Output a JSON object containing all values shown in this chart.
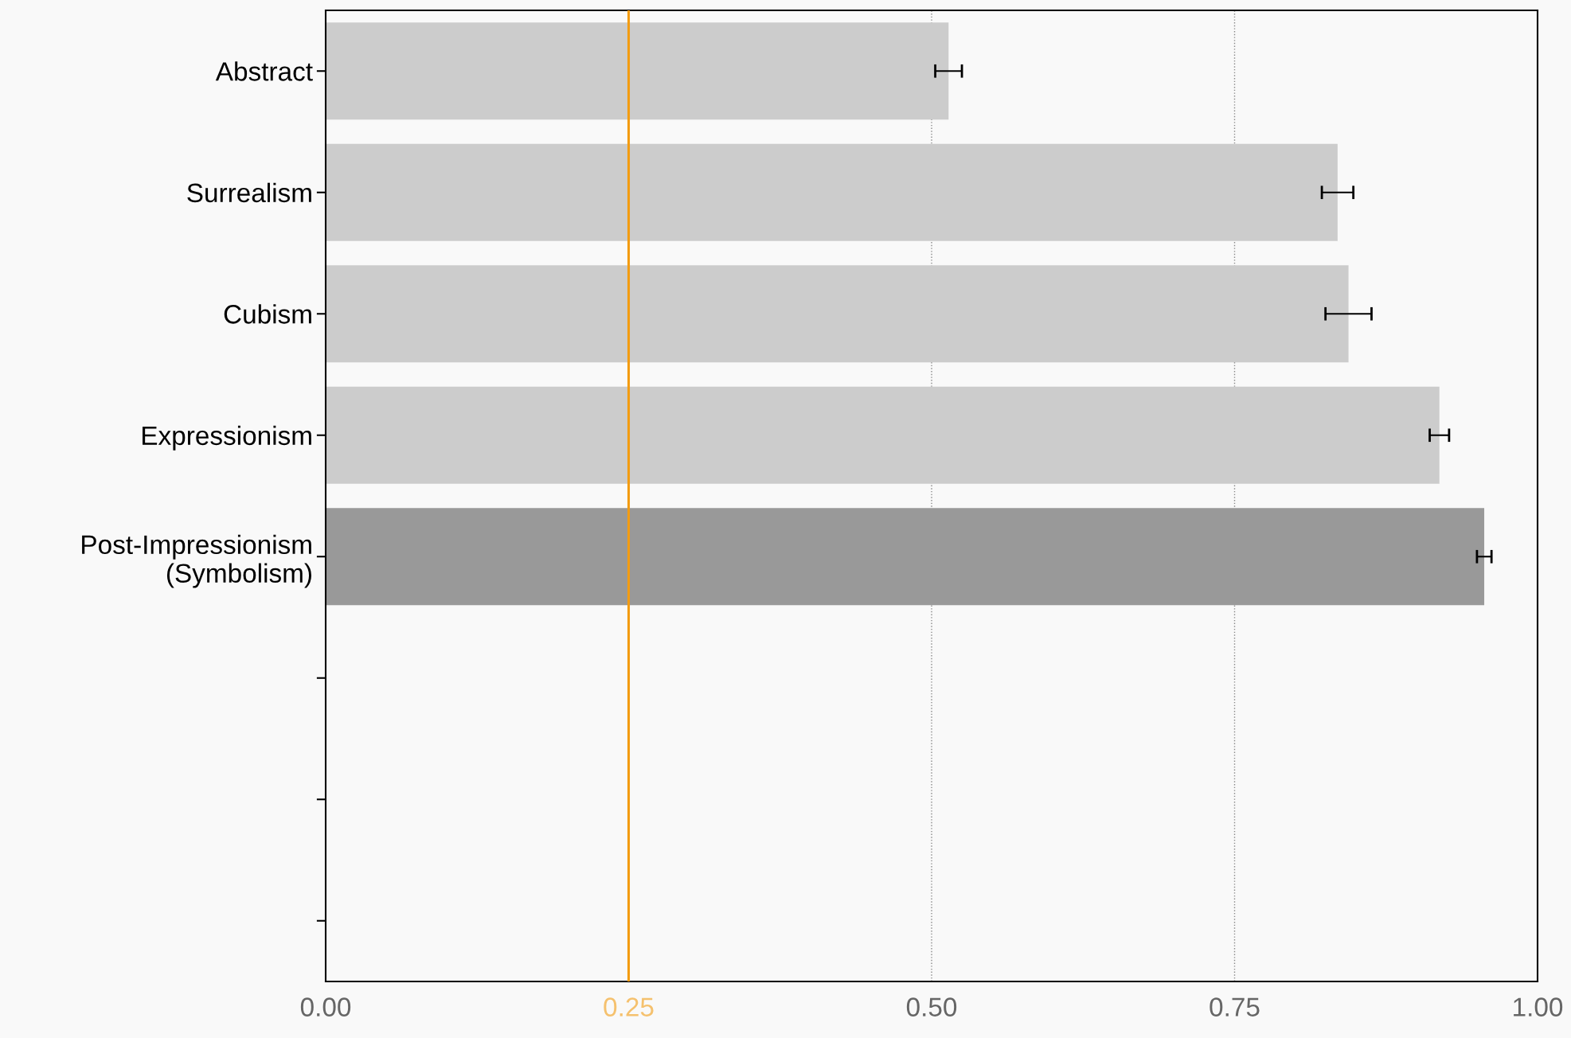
{
  "chart_data": {
    "type": "bar",
    "orientation": "horizontal",
    "categories": [
      "Abstract",
      "Surrealism",
      "Cubism",
      "Expressionism",
      "Post-Impressionism\n(Symbolism)",
      null,
      null,
      null
    ],
    "values": [
      0.514,
      0.835,
      0.844,
      0.919,
      0.956,
      null,
      null,
      null
    ],
    "errors": [
      0.011,
      0.013,
      0.019,
      0.008,
      0.006,
      null,
      null,
      null
    ],
    "colors": [
      "#cccccc",
      "#cccccc",
      "#cccccc",
      "#cccccc",
      "#999999",
      "#cccccc",
      "#cccccc",
      "#cccccc"
    ],
    "xlim": [
      0,
      1
    ],
    "xticks": [
      {
        "value": 0,
        "label": "0.00"
      },
      {
        "value": 0.25,
        "label": "0.25"
      },
      {
        "value": 0.5,
        "label": "0.50"
      },
      {
        "value": 0.75,
        "label": "0.75"
      },
      {
        "value": 1,
        "label": "1.00"
      }
    ],
    "ref_lines": [
      {
        "axis": "x",
        "value": 0.25,
        "color": "#f39c12"
      }
    ],
    "grid": "x"
  }
}
